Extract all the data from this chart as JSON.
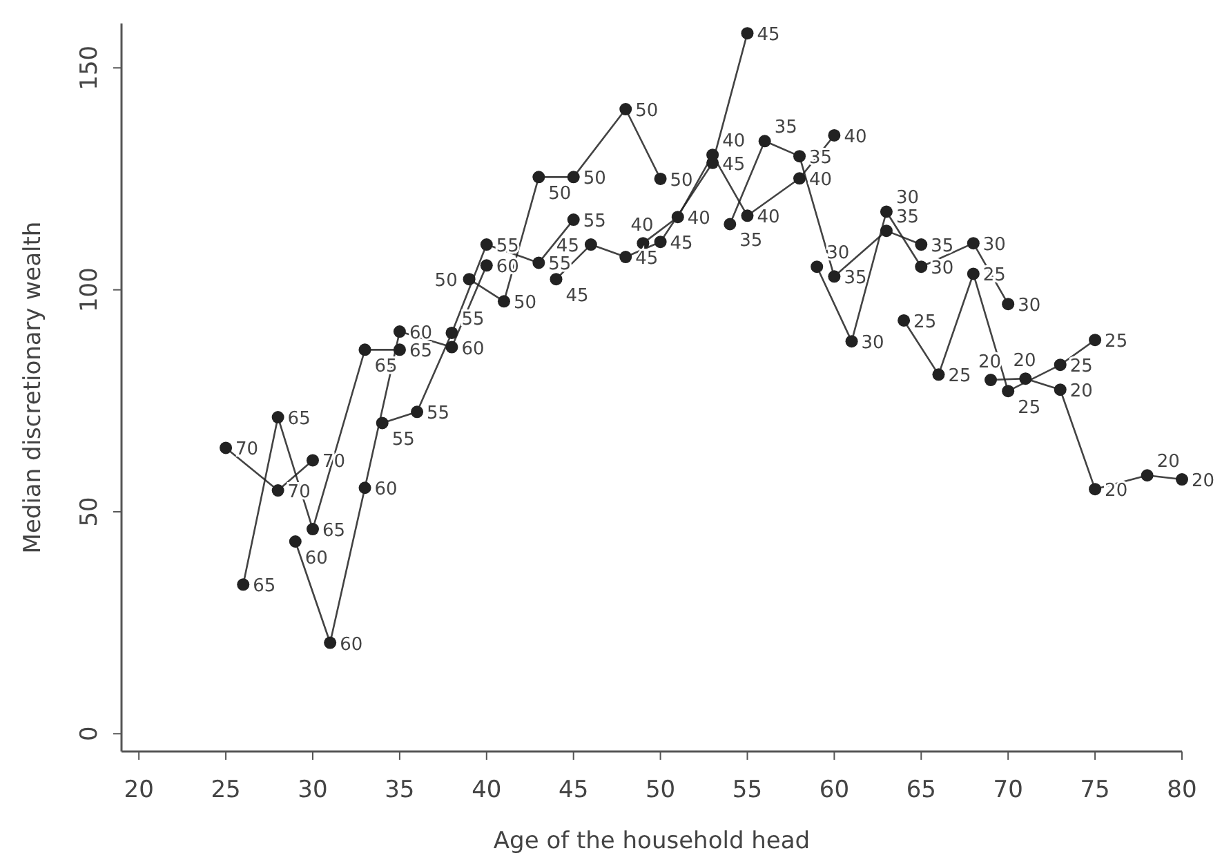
{
  "chart_data": {
    "type": "line",
    "xlabel": "Age of the household head",
    "ylabel": "Median discretionary wealth",
    "xlim": [
      19,
      80
    ],
    "xticks": [
      20,
      25,
      30,
      35,
      40,
      45,
      50,
      55,
      60,
      65,
      70,
      75,
      80
    ],
    "ylim": [
      -4,
      160
    ],
    "yticks": [
      0,
      50,
      100,
      150
    ],
    "grid": false,
    "marker": "circle",
    "line_style": "solid",
    "series": [
      {
        "name": "70",
        "color": "#222222",
        "x": [
          25,
          28,
          30
        ],
        "values": [
          64.4,
          54.8,
          61.6
        ]
      },
      {
        "name": "65",
        "color": "#222222",
        "x": [
          26,
          28,
          30,
          33,
          35
        ],
        "values": [
          33.6,
          71.3,
          46.1,
          86.5,
          86.5
        ]
      },
      {
        "name": "60",
        "color": "#222222",
        "x": [
          29,
          31,
          33,
          35,
          38,
          40
        ],
        "values": [
          43.3,
          20.5,
          55.4,
          90.6,
          87.1,
          105.5
        ]
      },
      {
        "name": "55",
        "color": "#222222",
        "x": [
          34,
          36,
          38,
          40,
          43,
          45
        ],
        "values": [
          70,
          72.5,
          90.3,
          110.2,
          106.1,
          115.8
        ]
      },
      {
        "name": "50",
        "color": "#222222",
        "x": [
          39,
          41,
          43,
          45,
          48,
          50
        ],
        "values": [
          102.4,
          97.4,
          125.4,
          125.4,
          140.7,
          125
        ]
      },
      {
        "name": "45",
        "color": "#222222",
        "x": [
          44,
          46,
          48,
          50,
          53,
          55
        ],
        "values": [
          102.4,
          110.2,
          107.4,
          110.8,
          128.6,
          157.8
        ]
      },
      {
        "name": "40",
        "color": "#222222",
        "x": [
          49,
          51,
          53,
          55,
          58,
          60
        ],
        "values": [
          110.5,
          116.4,
          130.4,
          116.7,
          125.1,
          134.8
        ]
      },
      {
        "name": "35",
        "color": "#222222",
        "x": [
          54,
          56,
          58,
          60,
          63,
          65
        ],
        "values": [
          114.8,
          133.5,
          130.1,
          103,
          113.3,
          110.2
        ]
      },
      {
        "name": "30",
        "color": "#222222",
        "x": [
          59,
          61,
          63,
          65,
          68,
          70
        ],
        "values": [
          105.2,
          88.4,
          117.6,
          105.2,
          110.5,
          96.8
        ]
      },
      {
        "name": "25",
        "color": "#222222",
        "x": [
          64,
          66,
          68,
          70,
          73,
          75
        ],
        "values": [
          93.1,
          80.9,
          103.6,
          77.2,
          83.1,
          88.7
        ]
      },
      {
        "name": "20",
        "color": "#222222",
        "x": [
          69,
          71,
          73,
          75,
          78,
          80
        ],
        "values": [
          79.7,
          80,
          77.5,
          55.1,
          58.2,
          57.3
        ]
      }
    ]
  }
}
